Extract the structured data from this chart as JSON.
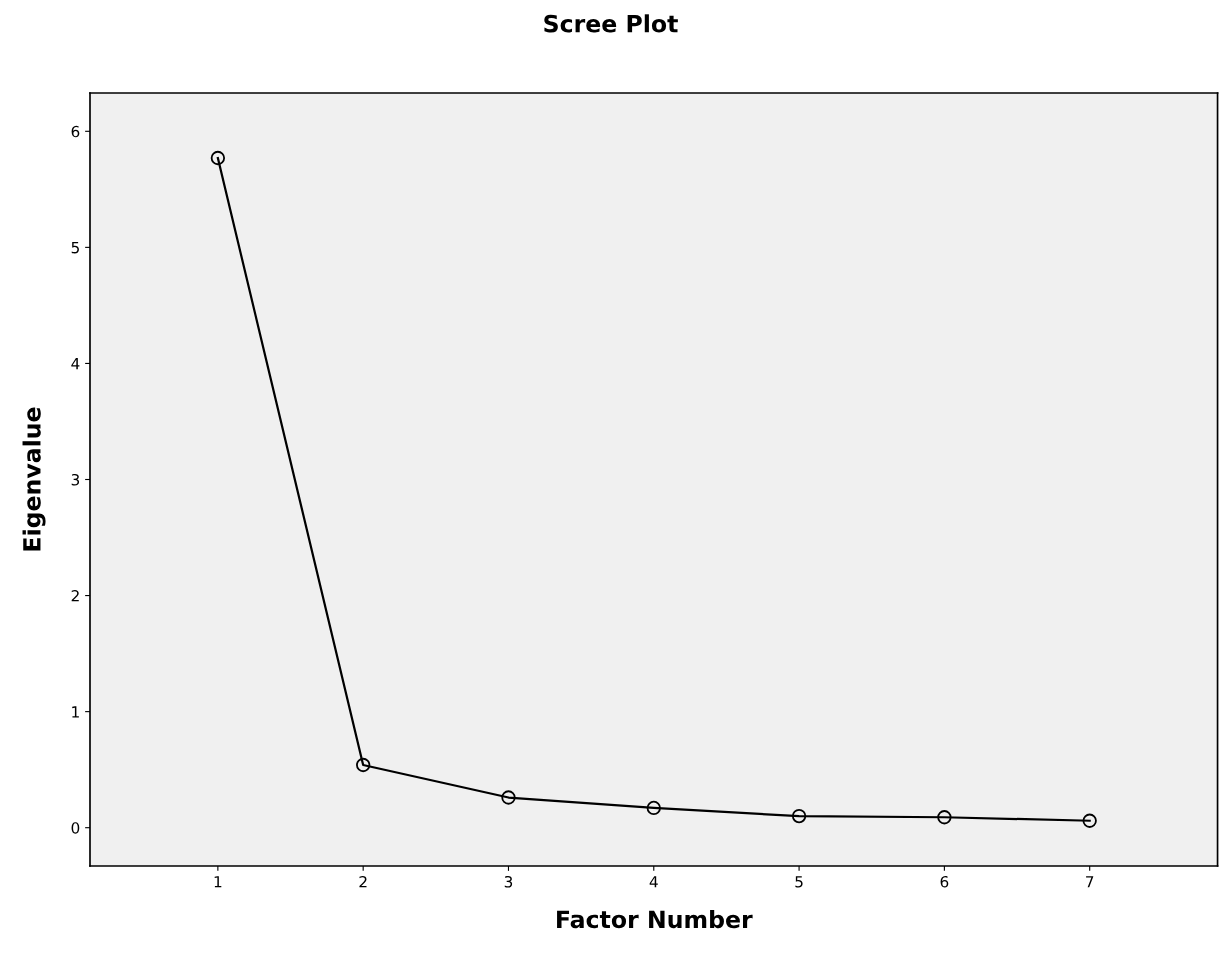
{
  "chart_data": {
    "type": "line",
    "title": "Scree Plot",
    "xlabel": "Factor Number",
    "ylabel": "Eigenvalue",
    "x": [
      1,
      2,
      3,
      4,
      5,
      6,
      7
    ],
    "series": [
      {
        "color": "#000000",
        "values": [
          5.77,
          0.54,
          0.26,
          0.17,
          0.1,
          0.09,
          0.06
        ]
      }
    ],
    "xlim": [
      0.12,
      7.88
    ],
    "xticks": [
      1,
      2,
      3,
      4,
      5,
      6,
      7
    ],
    "ylim": [
      -0.33,
      6.33
    ],
    "yticks": [
      0,
      1,
      2,
      3,
      4,
      5,
      6
    ],
    "marker": "circle",
    "line_style": "solid",
    "grid": false,
    "legend": false
  }
}
